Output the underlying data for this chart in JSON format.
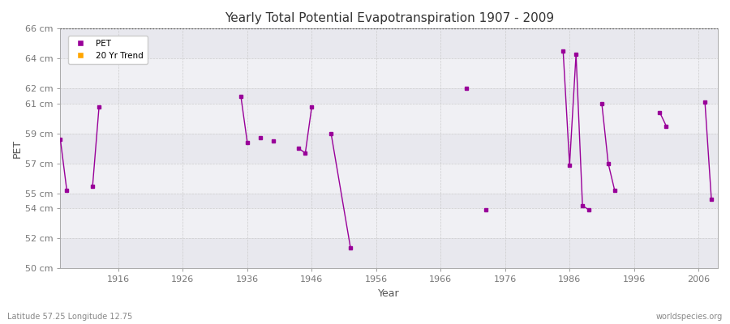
{
  "title": "Yearly Total Potential Evapotranspiration 1907 - 2009",
  "xlabel": "Year",
  "ylabel": "PET",
  "bottom_left": "Latitude 57.25 Longitude 12.75",
  "bottom_right": "worldspecies.org",
  "ylim": [
    50,
    66
  ],
  "xlim": [
    1907,
    2009
  ],
  "ytick_positions": [
    50,
    52,
    54,
    55,
    57,
    59,
    61,
    62,
    64,
    66
  ],
  "ytick_labels": [
    "50 cm",
    "52 cm",
    "54 cm",
    "55 cm",
    "57 cm",
    "59 cm",
    "61 cm",
    "62 cm",
    "64 cm",
    "66 cm"
  ],
  "xticks": [
    1916,
    1926,
    1936,
    1946,
    1956,
    1966,
    1976,
    1986,
    1996,
    2006
  ],
  "pet_color": "#990099",
  "trend_color": "#FFA500",
  "legend_labels": [
    "PET",
    "20 Yr Trend"
  ],
  "pet_data": [
    [
      1907,
      58.6
    ],
    [
      1908,
      55.2
    ],
    [
      1912,
      55.5
    ],
    [
      1913,
      60.8
    ],
    [
      1935,
      61.5
    ],
    [
      1936,
      58.4
    ],
    [
      1938,
      58.7
    ],
    [
      1940,
      58.5
    ],
    [
      1944,
      58.0
    ],
    [
      1945,
      57.7
    ],
    [
      1946,
      60.8
    ],
    [
      1949,
      59.0
    ],
    [
      1952,
      51.4
    ],
    [
      1970,
      62.0
    ],
    [
      1973,
      53.9
    ],
    [
      1985,
      64.5
    ],
    [
      1986,
      56.9
    ],
    [
      1987,
      64.3
    ],
    [
      1988,
      54.2
    ],
    [
      1989,
      53.9
    ],
    [
      1991,
      61.0
    ],
    [
      1992,
      57.0
    ],
    [
      1993,
      55.2
    ],
    [
      2000,
      60.4
    ],
    [
      2001,
      59.5
    ],
    [
      2007,
      61.1
    ],
    [
      2008,
      54.6
    ]
  ],
  "line_segments": [
    [
      [
        1907,
        58.6
      ],
      [
        1908,
        55.2
      ]
    ],
    [
      [
        1912,
        55.5
      ],
      [
        1913,
        60.8
      ]
    ],
    [
      [
        1935,
        61.5
      ],
      [
        1936,
        58.4
      ]
    ],
    [
      [
        1944,
        58.0
      ],
      [
        1945,
        57.7
      ],
      [
        1946,
        60.8
      ]
    ],
    [
      [
        1949,
        59.0
      ],
      [
        1952,
        51.4
      ]
    ],
    [
      [
        1985,
        64.5
      ],
      [
        1986,
        56.9
      ],
      [
        1987,
        64.3
      ],
      [
        1988,
        54.2
      ],
      [
        1989,
        53.9
      ]
    ],
    [
      [
        1991,
        61.0
      ],
      [
        1992,
        57.0
      ],
      [
        1993,
        55.2
      ]
    ],
    [
      [
        2000,
        60.4
      ],
      [
        2001,
        59.5
      ]
    ],
    [
      [
        2007,
        61.1
      ],
      [
        2008,
        54.6
      ]
    ]
  ]
}
